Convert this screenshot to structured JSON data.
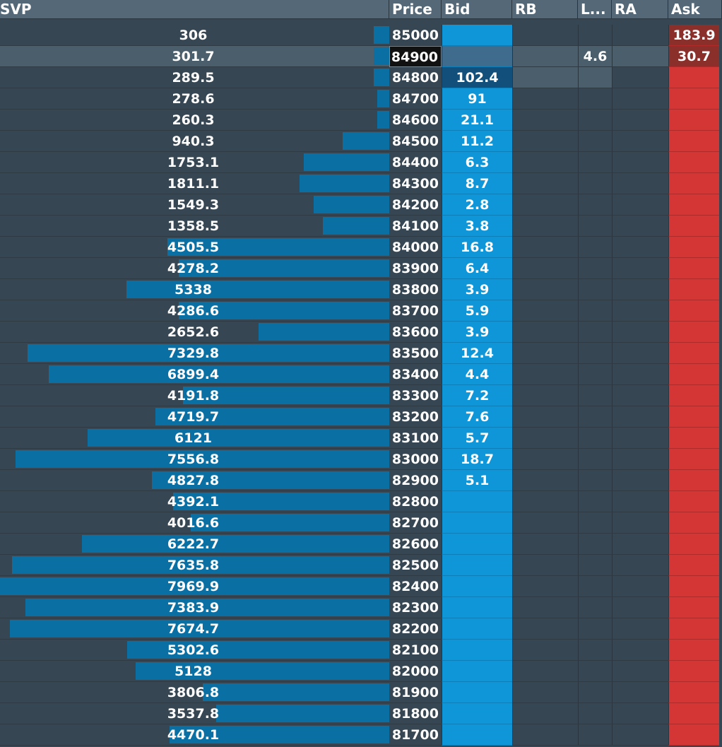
{
  "headers": {
    "svp": "SVP",
    "price": "Price",
    "bid": "Bid",
    "rb": "RB",
    "l": "L...",
    "ra": "RA",
    "ask": "Ask"
  },
  "colors": {
    "background": "#364652",
    "svp_bar": "#0a6fa3",
    "bid": "#0e96d9",
    "ask": "#d43535",
    "header": "#546877"
  },
  "current_price": "84900",
  "rows": [
    {
      "svp": "306",
      "svp_bar": 0.04,
      "price": "85000",
      "bid": "",
      "l": "",
      "ask": "183.9"
    },
    {
      "svp": "301.7",
      "svp_bar": 0.04,
      "price": "84900",
      "bid": "",
      "l": "4.6",
      "ask": "30.7"
    },
    {
      "svp": "289.5",
      "svp_bar": 0.04,
      "price": "84800",
      "bid": "102.4",
      "l": "",
      "ask": ""
    },
    {
      "svp": "278.6",
      "svp_bar": 0.03,
      "price": "84700",
      "bid": "91",
      "l": "",
      "ask": ""
    },
    {
      "svp": "260.3",
      "svp_bar": 0.03,
      "price": "84600",
      "bid": "21.1",
      "l": "",
      "ask": ""
    },
    {
      "svp": "940.3",
      "svp_bar": 0.12,
      "price": "84500",
      "bid": "11.2",
      "l": "",
      "ask": ""
    },
    {
      "svp": "1753.1",
      "svp_bar": 0.22,
      "price": "84400",
      "bid": "6.3",
      "l": "",
      "ask": ""
    },
    {
      "svp": "1811.1",
      "svp_bar": 0.23,
      "price": "84300",
      "bid": "8.7",
      "l": "",
      "ask": ""
    },
    {
      "svp": "1549.3",
      "svp_bar": 0.195,
      "price": "84200",
      "bid": "2.8",
      "l": "",
      "ask": ""
    },
    {
      "svp": "1358.5",
      "svp_bar": 0.17,
      "price": "84100",
      "bid": "3.8",
      "l": "",
      "ask": ""
    },
    {
      "svp": "4505.5",
      "svp_bar": 0.57,
      "price": "84000",
      "bid": "16.8",
      "l": "",
      "ask": ""
    },
    {
      "svp": "4278.2",
      "svp_bar": 0.54,
      "price": "83900",
      "bid": "6.4",
      "l": "",
      "ask": ""
    },
    {
      "svp": "5338",
      "svp_bar": 0.675,
      "price": "83800",
      "bid": "3.9",
      "l": "",
      "ask": ""
    },
    {
      "svp": "4286.6",
      "svp_bar": 0.54,
      "price": "83700",
      "bid": "5.9",
      "l": "",
      "ask": ""
    },
    {
      "svp": "2652.6",
      "svp_bar": 0.335,
      "price": "83600",
      "bid": "3.9",
      "l": "",
      "ask": ""
    },
    {
      "svp": "7329.8",
      "svp_bar": 0.93,
      "price": "83500",
      "bid": "12.4",
      "l": "",
      "ask": ""
    },
    {
      "svp": "6899.4",
      "svp_bar": 0.875,
      "price": "83400",
      "bid": "4.4",
      "l": "",
      "ask": ""
    },
    {
      "svp": "4191.8",
      "svp_bar": 0.53,
      "price": "83300",
      "bid": "7.2",
      "l": "",
      "ask": ""
    },
    {
      "svp": "4719.7",
      "svp_bar": 0.6,
      "price": "83200",
      "bid": "7.6",
      "l": "",
      "ask": ""
    },
    {
      "svp": "6121",
      "svp_bar": 0.775,
      "price": "83100",
      "bid": "5.7",
      "l": "",
      "ask": ""
    },
    {
      "svp": "7556.8",
      "svp_bar": 0.96,
      "price": "83000",
      "bid": "18.7",
      "l": "",
      "ask": ""
    },
    {
      "svp": "4827.8",
      "svp_bar": 0.61,
      "price": "82900",
      "bid": "5.1",
      "l": "",
      "ask": ""
    },
    {
      "svp": "4392.1",
      "svp_bar": 0.555,
      "price": "82800",
      "bid": "",
      "l": "",
      "ask": ""
    },
    {
      "svp": "4016.6",
      "svp_bar": 0.51,
      "price": "82700",
      "bid": "",
      "l": "",
      "ask": ""
    },
    {
      "svp": "6222.7",
      "svp_bar": 0.79,
      "price": "82600",
      "bid": "",
      "l": "",
      "ask": ""
    },
    {
      "svp": "7635.8",
      "svp_bar": 0.97,
      "price": "82500",
      "bid": "",
      "l": "",
      "ask": ""
    },
    {
      "svp": "7969.9",
      "svp_bar": 1.0,
      "price": "82400",
      "bid": "",
      "l": "",
      "ask": ""
    },
    {
      "svp": "7383.9",
      "svp_bar": 0.935,
      "price": "82300",
      "bid": "",
      "l": "",
      "ask": ""
    },
    {
      "svp": "7674.7",
      "svp_bar": 0.975,
      "price": "82200",
      "bid": "",
      "l": "",
      "ask": ""
    },
    {
      "svp": "5302.6",
      "svp_bar": 0.673,
      "price": "82100",
      "bid": "",
      "l": "",
      "ask": ""
    },
    {
      "svp": "5128",
      "svp_bar": 0.651,
      "price": "82000",
      "bid": "",
      "l": "",
      "ask": ""
    },
    {
      "svp": "3806.8",
      "svp_bar": 0.48,
      "price": "81900",
      "bid": "",
      "l": "",
      "ask": ""
    },
    {
      "svp": "3537.8",
      "svp_bar": 0.445,
      "price": "81800",
      "bid": "",
      "l": "",
      "ask": ""
    },
    {
      "svp": "4470.1",
      "svp_bar": 0.565,
      "price": "81700",
      "bid": "",
      "l": "",
      "ask": ""
    }
  ]
}
